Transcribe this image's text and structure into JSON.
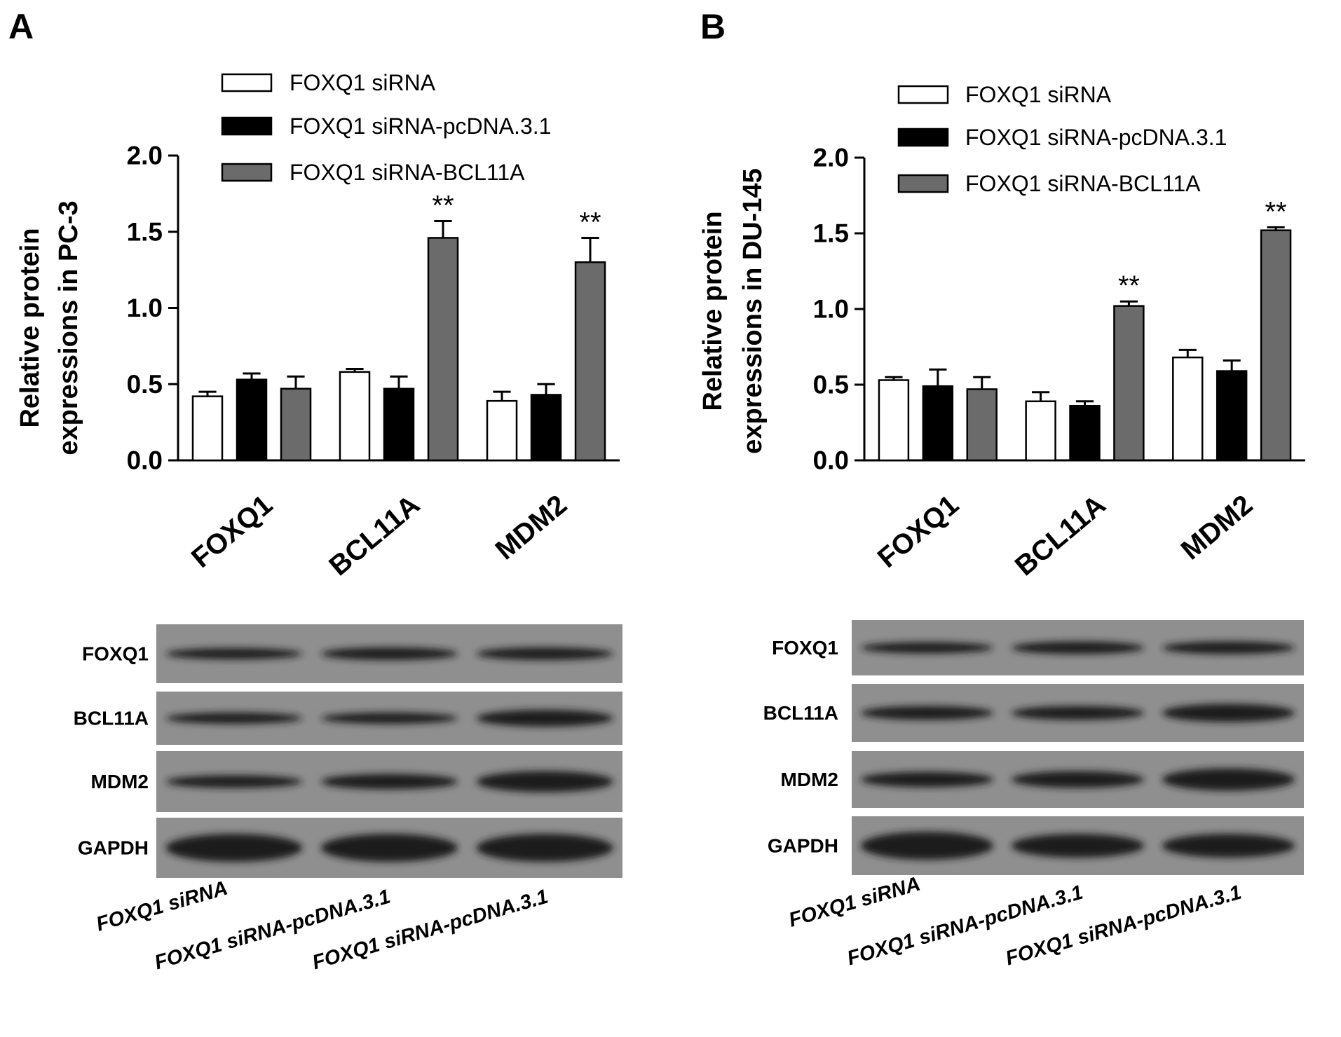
{
  "chart_data": [
    {
      "type": "bar",
      "panel": "A",
      "ylabel": [
        "Relative protein",
        "expressions in PC-3"
      ],
      "categories": [
        "FOXQ1",
        "BCL11A",
        "MDM2"
      ],
      "series": [
        {
          "name": "FOXQ1 siRNA",
          "color": "#ffffff",
          "values": [
            0.42,
            0.58,
            0.39
          ],
          "errors": [
            0.03,
            0.02,
            0.06
          ]
        },
        {
          "name": "FOXQ1 siRNA-pcDNA.3.1",
          "color": "#000000",
          "values": [
            0.53,
            0.47,
            0.43
          ],
          "errors": [
            0.04,
            0.08,
            0.07
          ]
        },
        {
          "name": "FOXQ1 siRNA-BCL11A",
          "color": "#6b6b6b",
          "values": [
            0.47,
            1.46,
            1.3
          ],
          "errors": [
            0.08,
            0.11,
            0.16
          ],
          "annotations": [
            null,
            "**",
            "**"
          ]
        }
      ],
      "ylim": [
        0,
        2
      ],
      "yticks": [
        {
          "value": 0,
          "label": "0.0"
        },
        0.5,
        {
          "value": 1,
          "label": "1.0"
        },
        1.5,
        {
          "value": 2,
          "label": "2.0"
        }
      ],
      "blot": {
        "rows": [
          "FOXQ1",
          "BCL11A",
          "MDM2",
          "GAPDH"
        ],
        "lanes": [
          "FOXQ1 siRNA",
          "FOXQ1 siRNA-pcDNA.3.1",
          "FOXQ1 siRNA-pcDNA.3.1"
        ]
      }
    },
    {
      "type": "bar",
      "panel": "B",
      "ylabel": [
        "Relative protein",
        "expressions in DU-145"
      ],
      "categories": [
        "FOXQ1",
        "BCL11A",
        "MDM2"
      ],
      "series": [
        {
          "name": "FOXQ1 siRNA",
          "color": "#ffffff",
          "values": [
            0.53,
            0.39,
            0.68
          ],
          "errors": [
            0.02,
            0.06,
            0.05
          ]
        },
        {
          "name": "FOXQ1 siRNA-pcDNA.3.1",
          "color": "#000000",
          "values": [
            0.49,
            0.36,
            0.59
          ],
          "errors": [
            0.11,
            0.03,
            0.07
          ]
        },
        {
          "name": "FOXQ1 siRNA-BCL11A",
          "color": "#6b6b6b",
          "values": [
            0.47,
            1.02,
            1.52
          ],
          "errors": [
            0.08,
            0.03,
            0.02
          ],
          "annotations": [
            null,
            "**",
            "**"
          ]
        }
      ],
      "ylim": [
        0,
        2
      ],
      "yticks": [
        {
          "value": 0,
          "label": "0.0"
        },
        0.5,
        {
          "value": 1,
          "label": "1.0"
        },
        1.5,
        {
          "value": 2,
          "label": "2.0"
        }
      ],
      "blot": {
        "rows": [
          "FOXQ1",
          "BCL11A",
          "MDM2",
          "GAPDH"
        ],
        "lanes": [
          "FOXQ1 siRNA",
          "FOXQ1 siRNA-pcDNA.3.1",
          "FOXQ1 siRNA-pcDNA.3.1"
        ]
      }
    }
  ]
}
